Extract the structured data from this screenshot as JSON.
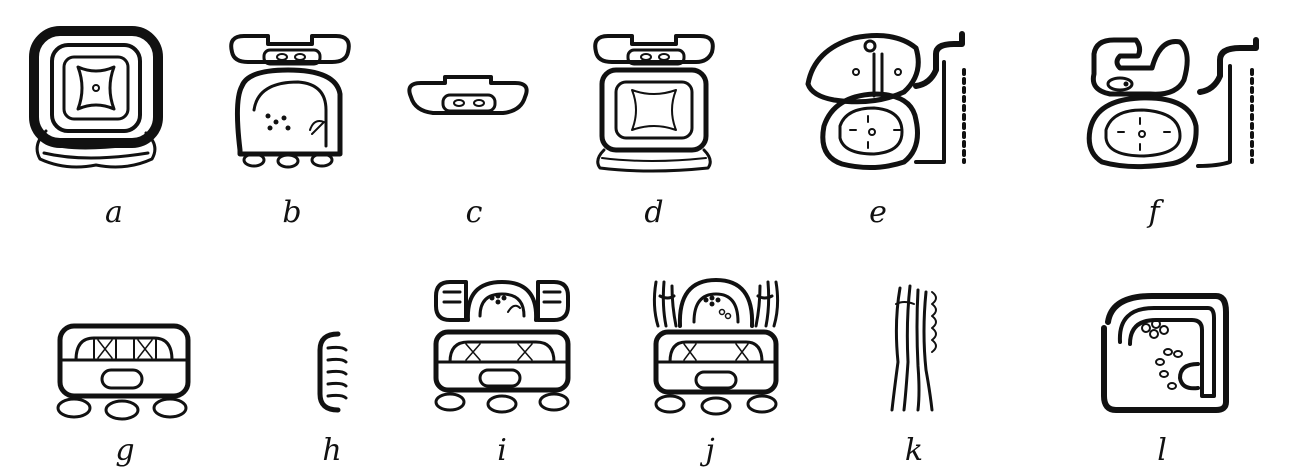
{
  "figure": {
    "glyphs": [
      {
        "id": "a",
        "label": "a"
      },
      {
        "id": "b",
        "label": "b"
      },
      {
        "id": "c",
        "label": "c"
      },
      {
        "id": "d",
        "label": "d"
      },
      {
        "id": "e",
        "label": "e"
      },
      {
        "id": "f",
        "label": "f"
      },
      {
        "id": "g",
        "label": "g"
      },
      {
        "id": "h",
        "label": "h"
      },
      {
        "id": "i",
        "label": "i"
      },
      {
        "id": "j",
        "label": "j"
      },
      {
        "id": "k",
        "label": "k"
      },
      {
        "id": "l",
        "label": "l"
      }
    ],
    "colors": {
      "ink": "#111111",
      "paper": "#ffffff"
    }
  }
}
